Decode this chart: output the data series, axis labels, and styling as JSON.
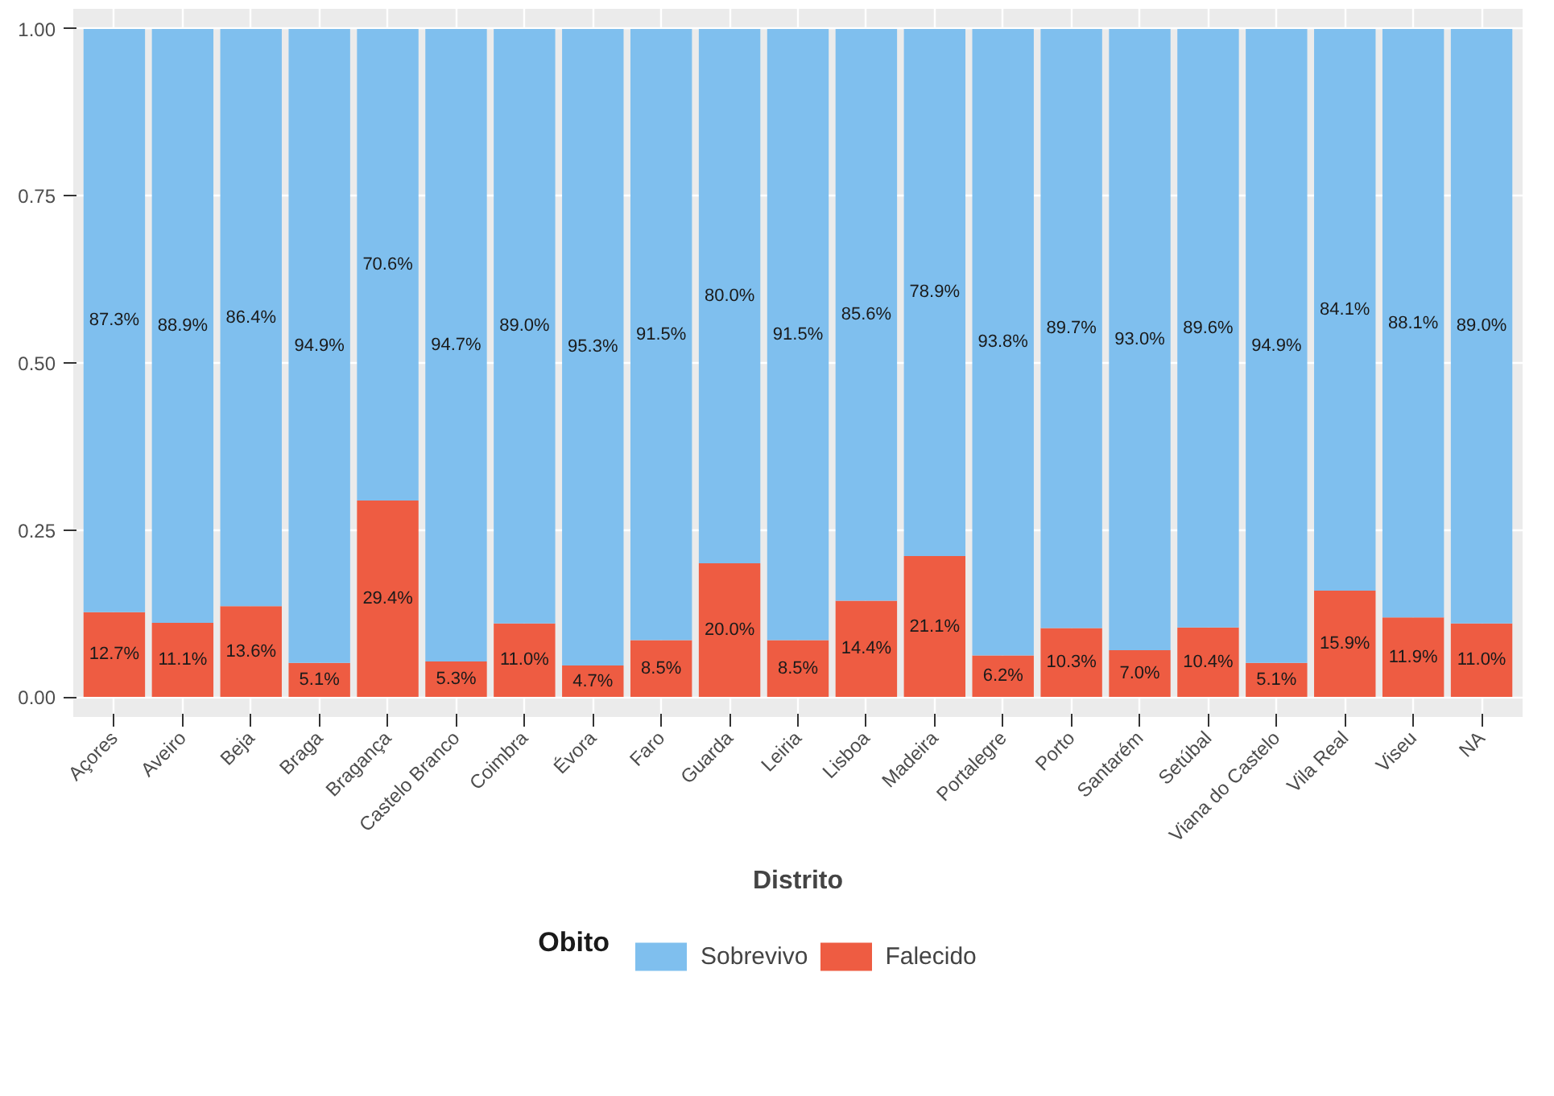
{
  "chart_data": {
    "type": "bar",
    "stacked": true,
    "xlabel": "Distrito",
    "legend_title": "Obito",
    "legend": "bottom",
    "grid": true,
    "categories": [
      "Açores",
      "Aveiro",
      "Beja",
      "Braga",
      "Bragança",
      "Castelo Branco",
      "Coimbra",
      "Évora",
      "Faro",
      "Guarda",
      "Leiria",
      "Lisboa",
      "Madeira",
      "Portalegre",
      "Porto",
      "Santarém",
      "Setúbal",
      "Viana do Castelo",
      "Vila Real",
      "Viseu",
      "NA"
    ],
    "ylim": [
      -0.03,
      1.03
    ],
    "yticks": [
      {
        "value": 0,
        "label": "0.00"
      },
      {
        "value": 0.25,
        "label": "0.25"
      },
      {
        "value": 0.5,
        "label": "0.50"
      },
      {
        "value": 0.75,
        "label": "0.75"
      },
      {
        "value": 1,
        "label": "1.00"
      }
    ],
    "series": [
      {
        "name": "Falecido",
        "color": "#ee5c42",
        "values": [
          0.127,
          0.111,
          0.136,
          0.051,
          0.294,
          0.053,
          0.11,
          0.047,
          0.085,
          0.2,
          0.085,
          0.144,
          0.211,
          0.062,
          0.103,
          0.07,
          0.104,
          0.051,
          0.159,
          0.119,
          0.11
        ],
        "value_labels": [
          "12.7%",
          "11.1%",
          "13.6%",
          "5.1%",
          "29.4%",
          "5.3%",
          "11.0%",
          "4.7%",
          "8.5%",
          "20.0%",
          "8.5%",
          "14.4%",
          "21.1%",
          "6.2%",
          "10.3%",
          "7.0%",
          "10.4%",
          "5.1%",
          "15.9%",
          "11.9%",
          "11.0%"
        ]
      },
      {
        "name": "Sobrevivo",
        "color": "#7fbfee",
        "values": [
          0.873,
          0.889,
          0.864,
          0.949,
          0.706,
          0.947,
          0.89,
          0.953,
          0.915,
          0.8,
          0.915,
          0.856,
          0.789,
          0.938,
          0.897,
          0.93,
          0.896,
          0.949,
          0.841,
          0.881,
          0.89
        ],
        "value_labels": [
          "87.3%",
          "88.9%",
          "86.4%",
          "94.9%",
          "70.6%",
          "94.7%",
          "89.0%",
          "95.3%",
          "91.5%",
          "80.0%",
          "91.5%",
          "85.6%",
          "78.9%",
          "93.8%",
          "89.7%",
          "93.0%",
          "89.6%",
          "94.9%",
          "84.1%",
          "88.1%",
          "89.0%"
        ]
      }
    ]
  }
}
